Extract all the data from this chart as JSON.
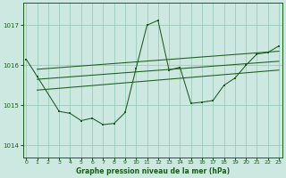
{
  "xlabel": "Graphe pression niveau de la mer (hPa)",
  "background_color": "#cce8e0",
  "grid_color": "#99ccbb",
  "line_color": "#1a5c1a",
  "xlim": [
    -0.3,
    23.3
  ],
  "ylim": [
    1013.7,
    1017.55
  ],
  "yticks": [
    1014,
    1015,
    1016,
    1017
  ],
  "xticks": [
    0,
    1,
    2,
    3,
    4,
    5,
    6,
    7,
    8,
    9,
    10,
    11,
    12,
    13,
    14,
    15,
    16,
    17,
    18,
    19,
    20,
    21,
    22,
    23
  ],
  "series": [
    {
      "x": [
        0,
        1,
        3,
        4,
        5,
        6,
        7,
        8,
        9,
        10,
        11,
        12,
        13,
        14,
        15,
        16,
        17,
        18,
        19,
        20,
        21,
        22,
        23
      ],
      "y": [
        1016.15,
        1015.72,
        1014.85,
        1014.8,
        1014.62,
        1014.68,
        1014.52,
        1014.55,
        1014.82,
        1015.92,
        1017.0,
        1017.12,
        1015.88,
        1015.95,
        1015.05,
        1015.08,
        1015.12,
        1015.5,
        1015.68,
        1016.0,
        1016.28,
        1016.32,
        1016.48
      ],
      "has_markers": true
    },
    {
      "x": [
        1,
        23
      ],
      "y": [
        1015.9,
        1016.35
      ],
      "has_markers": false
    },
    {
      "x": [
        1,
        23
      ],
      "y": [
        1015.65,
        1016.1
      ],
      "has_markers": false
    },
    {
      "x": [
        1,
        23
      ],
      "y": [
        1015.38,
        1015.88
      ],
      "has_markers": false
    }
  ]
}
